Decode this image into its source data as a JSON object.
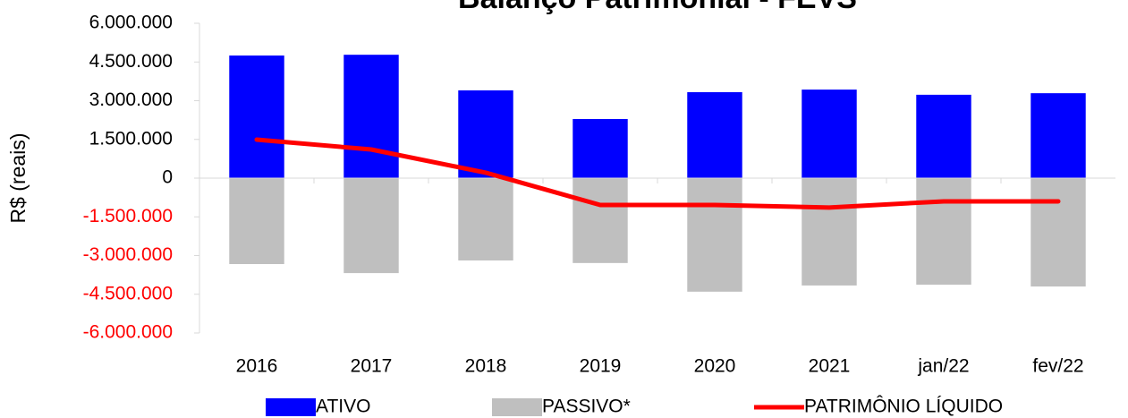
{
  "chart_data": {
    "type": "bar",
    "title": "Balanço Patrimonial - FEVS",
    "y_label": "R$ (reais)",
    "categories": [
      "2016",
      "2017",
      "2018",
      "2019",
      "2020",
      "2021",
      "jan/22",
      "fev/22"
    ],
    "series": [
      {
        "name": "ATIVO",
        "type": "bar",
        "color": "#0000ff",
        "values": [
          4750000,
          4780000,
          3400000,
          2290000,
          3330000,
          3430000,
          3230000,
          3290000
        ]
      },
      {
        "name": "PASSIVO*",
        "type": "bar",
        "color": "#bfbfbf",
        "values": [
          -3330000,
          -3680000,
          -3190000,
          -3290000,
          -4400000,
          -4160000,
          -4130000,
          -4200000
        ]
      },
      {
        "name": "PATRIMÔNIO LÍQUIDO",
        "type": "line",
        "color": "#ff0000",
        "values": [
          1490000,
          1110000,
          210000,
          -1040000,
          -1040000,
          -1140000,
          -900000,
          -900000
        ]
      }
    ],
    "ylim": [
      -6000000,
      6000000
    ],
    "yticks": [
      {
        "value": 6000000,
        "label": "6.000.000"
      },
      {
        "value": 4500000,
        "label": "4.500.000"
      },
      {
        "value": 3000000,
        "label": "3.000.000"
      },
      {
        "value": 1500000,
        "label": "1.500.000"
      },
      0,
      {
        "value": -1500000,
        "label": "-1.500.000"
      },
      {
        "value": -3000000,
        "label": "-3.000.000"
      },
      {
        "value": -4500000,
        "label": "-4.500.000"
      },
      {
        "value": -6000000,
        "label": "-6.000.000"
      }
    ],
    "negative_tick_color": "#ff0000",
    "legend": "bottom"
  }
}
